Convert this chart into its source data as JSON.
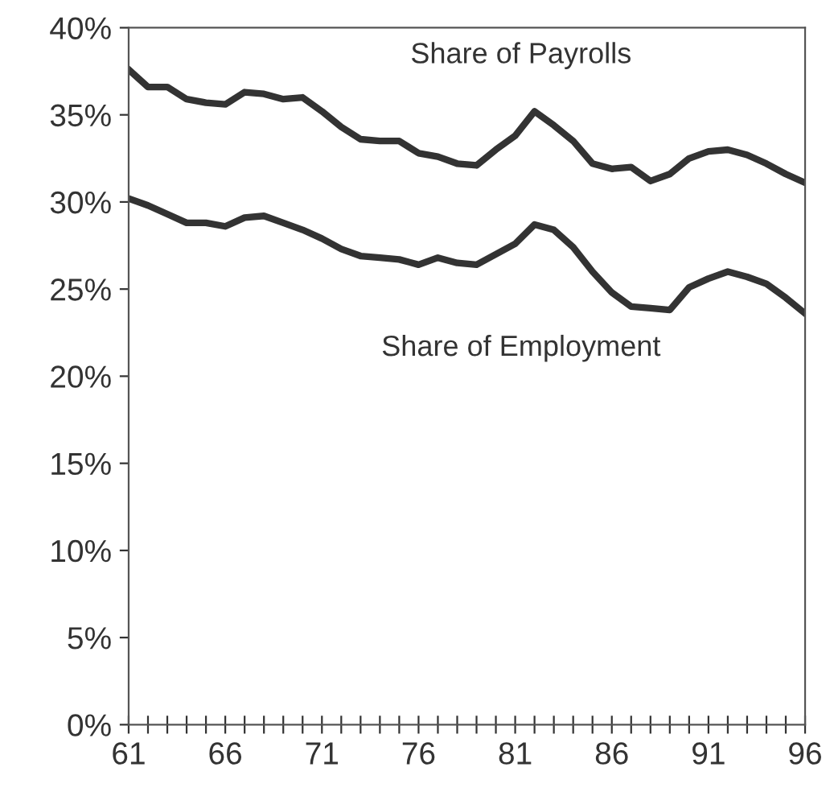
{
  "chart_data": {
    "type": "line",
    "x": [
      61,
      62,
      63,
      64,
      65,
      66,
      67,
      68,
      69,
      70,
      71,
      72,
      73,
      74,
      75,
      76,
      77,
      78,
      79,
      80,
      81,
      82,
      83,
      84,
      85,
      86,
      87,
      88,
      89,
      90,
      91,
      92,
      93,
      94,
      95,
      96
    ],
    "series": [
      {
        "name": "Share of Payrolls",
        "color": "#333333",
        "values": [
          37.6,
          36.6,
          36.6,
          35.9,
          35.7,
          35.6,
          36.3,
          36.2,
          35.9,
          36.0,
          35.2,
          34.3,
          33.6,
          33.5,
          33.5,
          32.8,
          32.6,
          32.2,
          32.1,
          33.0,
          33.8,
          35.2,
          34.4,
          33.5,
          32.2,
          31.9,
          32.0,
          31.2,
          31.6,
          32.5,
          32.9,
          33.0,
          32.7,
          32.2,
          31.6,
          31.1
        ]
      },
      {
        "name": "Share of Employment",
        "color": "#333333",
        "values": [
          30.2,
          29.8,
          29.3,
          28.8,
          28.8,
          28.6,
          29.1,
          29.2,
          28.8,
          28.4,
          27.9,
          27.3,
          26.9,
          26.8,
          26.7,
          26.4,
          26.8,
          26.5,
          26.4,
          27.0,
          27.6,
          28.7,
          28.4,
          27.4,
          26.0,
          24.8,
          24.0,
          23.9,
          23.8,
          25.1,
          25.6,
          26.0,
          25.7,
          25.3,
          24.5,
          23.6
        ]
      }
    ],
    "xlim": [
      61,
      96
    ],
    "xticks": [
      61,
      {
        "value": 62,
        "label": null
      },
      {
        "value": 63,
        "label": null
      },
      {
        "value": 64,
        "label": null
      },
      {
        "value": 65,
        "label": null
      },
      66,
      {
        "value": 67,
        "label": null
      },
      {
        "value": 68,
        "label": null
      },
      {
        "value": 69,
        "label": null
      },
      {
        "value": 70,
        "label": null
      },
      71,
      {
        "value": 72,
        "label": null
      },
      {
        "value": 73,
        "label": null
      },
      {
        "value": 74,
        "label": null
      },
      {
        "value": 75,
        "label": null
      },
      76,
      {
        "value": 77,
        "label": null
      },
      {
        "value": 78,
        "label": null
      },
      {
        "value": 79,
        "label": null
      },
      {
        "value": 80,
        "label": null
      },
      81,
      {
        "value": 82,
        "label": null
      },
      {
        "value": 83,
        "label": null
      },
      {
        "value": 84,
        "label": null
      },
      {
        "value": 85,
        "label": null
      },
      86,
      {
        "value": 87,
        "label": null
      },
      {
        "value": 88,
        "label": null
      },
      {
        "value": 89,
        "label": null
      },
      {
        "value": 90,
        "label": null
      },
      91,
      {
        "value": 92,
        "label": null
      },
      {
        "value": 93,
        "label": null
      },
      {
        "value": 94,
        "label": null
      },
      {
        "value": 95,
        "label": null
      },
      96
    ],
    "ylim": [
      0,
      40
    ],
    "yticks": [
      {
        "value": 0,
        "label": "0%"
      },
      {
        "value": 5,
        "label": "5%"
      },
      {
        "value": 10,
        "label": "10%"
      },
      {
        "value": 15,
        "label": "15%"
      },
      {
        "value": 20,
        "label": "20%"
      },
      {
        "value": 25,
        "label": "25%"
      },
      {
        "value": 30,
        "label": "30%"
      },
      {
        "value": 35,
        "label": "35%"
      },
      {
        "value": 40,
        "label": "40%"
      }
    ],
    "grid": false,
    "legend": false,
    "marker": "none",
    "line_style": "solid"
  }
}
